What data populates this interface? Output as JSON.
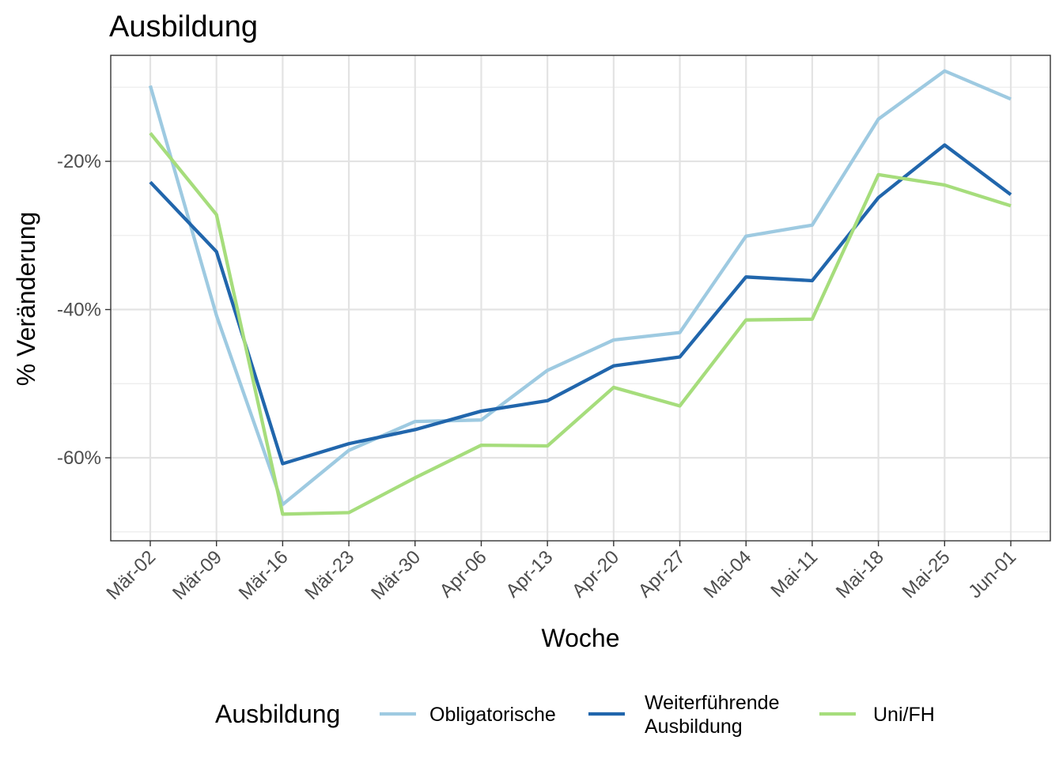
{
  "chart_data": {
    "type": "line",
    "title": "Ausbildung",
    "xlabel": "Woche",
    "ylabel": "% Veränderung",
    "categories": [
      "Mär-02",
      "Mär-09",
      "Mär-16",
      "Mär-23",
      "Mär-30",
      "Apr-06",
      "Apr-13",
      "Apr-20",
      "Apr-27",
      "Mai-04",
      "Mai-11",
      "Mai-18",
      "Mai-25",
      "Jun-01"
    ],
    "yticks": [
      -60,
      -40,
      -20
    ],
    "ytick_labels": [
      "-60%",
      "-40%",
      "-20%"
    ],
    "ylim": [
      -71.2,
      -5.7
    ],
    "grid": true,
    "legend": {
      "title": "Ausbildung",
      "position": "bottom"
    },
    "series": [
      {
        "name": "Obligatorische",
        "label_lines": [
          "Obligatorische"
        ],
        "color": "#9ecae1",
        "values": [
          -9.8,
          -40.8,
          -66.3,
          -59.0,
          -55.1,
          -54.9,
          -48.2,
          -44.1,
          -43.1,
          -30.1,
          -28.6,
          -14.3,
          -7.8,
          -11.6
        ]
      },
      {
        "name": "Weiterführende Ausbildung",
        "label_lines": [
          "Weiterführende",
          "Ausbildung"
        ],
        "color": "#2166ac",
        "values": [
          -22.8,
          -32.2,
          -60.8,
          -58.1,
          -56.2,
          -53.7,
          -52.3,
          -47.6,
          -46.4,
          -35.6,
          -36.1,
          -24.9,
          -17.8,
          -24.5
        ]
      },
      {
        "name": "Uni/FH",
        "label_lines": [
          "Uni/FH"
        ],
        "color": "#a6dd7c",
        "values": [
          -16.2,
          -27.2,
          -67.6,
          -67.4,
          -62.7,
          -58.3,
          -58.4,
          -50.5,
          -53.0,
          -41.4,
          -41.3,
          -21.8,
          -23.2,
          -26.0
        ]
      }
    ]
  }
}
